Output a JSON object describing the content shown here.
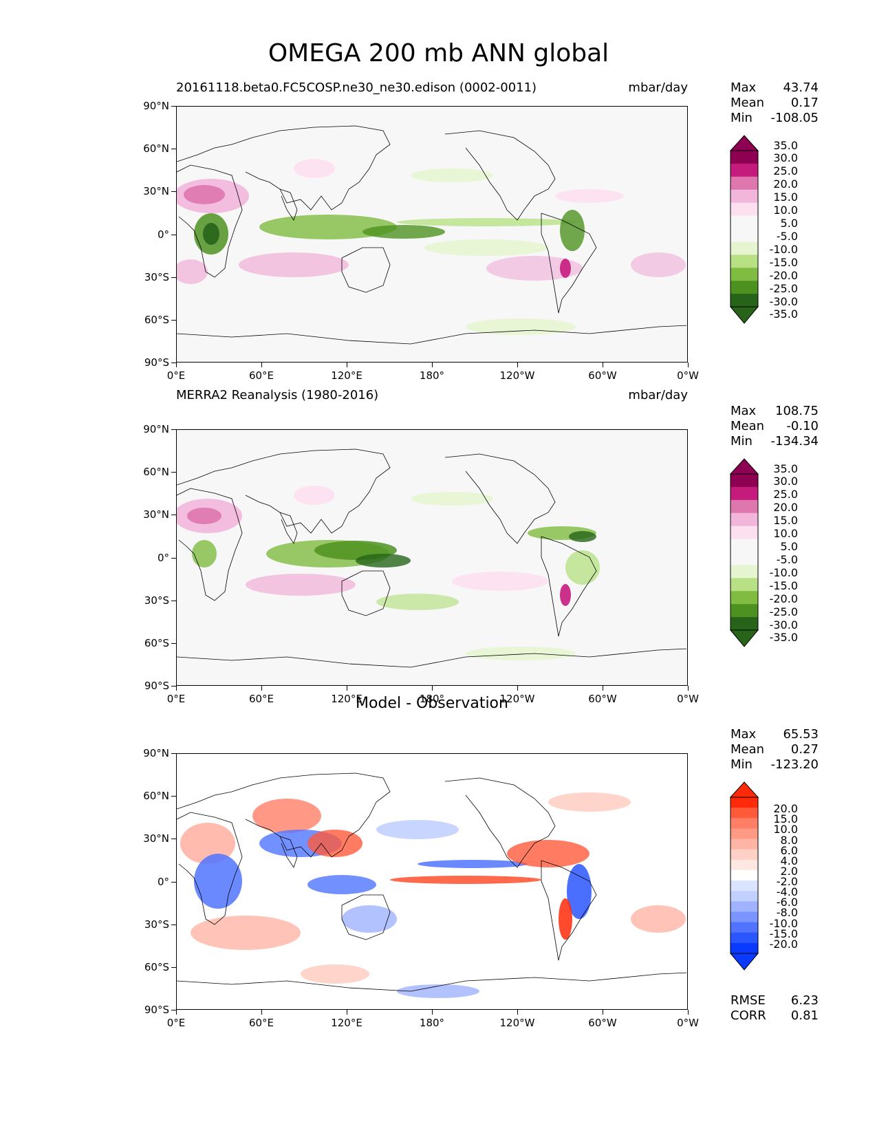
{
  "title": "OMEGA 200 mb ANN global",
  "y_ticks": [
    "90°N",
    "60°N",
    "30°N",
    "0°",
    "30°S",
    "60°S",
    "90°S"
  ],
  "x_ticks": [
    "0°E",
    "60°E",
    "120°E",
    "180°",
    "120°W",
    "60°W",
    "0°W"
  ],
  "panels": [
    {
      "id": "model",
      "title_left": "20161118.beta0.FC5COSP.ne30_ne30.edison (0002-0011)",
      "title_right": "mbar/day",
      "title_center": "",
      "stats": {
        "max_label": "Max",
        "max": "43.74",
        "mean_label": "Mean",
        "mean": "0.17",
        "min_label": "Min",
        "min": "-108.05"
      },
      "colorbar": {
        "labels": [
          "35.0",
          "30.0",
          "25.0",
          "20.0",
          "15.0",
          "10.0",
          "5.0",
          "-5.0",
          "-10.0",
          "-15.0",
          "-20.0",
          "-25.0",
          "-30.0",
          "-35.0"
        ],
        "colors": [
          "#8e0152",
          "#c51b7d",
          "#de77ae",
          "#f1b6da",
          "#fde0ef",
          "#f7f7f7",
          "#f7f7f7",
          "#e6f5d0",
          "#b8e186",
          "#7fbc41",
          "#4d9221",
          "#276419"
        ],
        "top_extend": "#8e0152",
        "bottom_extend": "#276419"
      }
    },
    {
      "id": "obs",
      "title_left": "MERRA2 Reanalysis (1980-2016)",
      "title_right": "mbar/day",
      "title_center": "",
      "stats": {
        "max_label": "Max",
        "max": "108.75",
        "mean_label": "Mean",
        "mean": "-0.10",
        "min_label": "Min",
        "min": "-134.34"
      },
      "colorbar": {
        "labels": [
          "35.0",
          "30.0",
          "25.0",
          "20.0",
          "15.0",
          "10.0",
          "5.0",
          "-5.0",
          "-10.0",
          "-15.0",
          "-20.0",
          "-25.0",
          "-30.0",
          "-35.0"
        ],
        "colors": [
          "#8e0152",
          "#c51b7d",
          "#de77ae",
          "#f1b6da",
          "#fde0ef",
          "#f7f7f7",
          "#f7f7f7",
          "#e6f5d0",
          "#b8e186",
          "#7fbc41",
          "#4d9221",
          "#276419"
        ],
        "top_extend": "#8e0152",
        "bottom_extend": "#276419"
      }
    },
    {
      "id": "diff",
      "title_left": "",
      "title_right": "",
      "title_center": "Model - Observation",
      "stats": {
        "max_label": "Max",
        "max": "65.53",
        "mean_label": "Mean",
        "mean": "0.27",
        "min_label": "Min",
        "min": "-123.20"
      },
      "colorbar": {
        "labels": [
          "20.0",
          "15.0",
          "10.0",
          "8.0",
          "6.0",
          "4.0",
          "2.0",
          "-2.0",
          "-4.0",
          "-6.0",
          "-8.0",
          "-10.0",
          "-15.0",
          "-20.0"
        ],
        "colors": [
          "#ff2a0a",
          "#ff5a3a",
          "#ff7f66",
          "#ff9a85",
          "#ffb5a5",
          "#ffd0c5",
          "#ffe8e2",
          "#ffffff",
          "#dbe4ff",
          "#c2d0ff",
          "#9fb3ff",
          "#7a95ff",
          "#5074ff",
          "#2a56ff",
          "#0a3aff"
        ],
        "top_extend": "#ff2a0a",
        "bottom_extend": "#0a3aff"
      },
      "footer": {
        "rmse_label": "RMSE",
        "rmse": "6.23",
        "corr_label": "CORR",
        "corr": "0.81"
      }
    }
  ]
}
